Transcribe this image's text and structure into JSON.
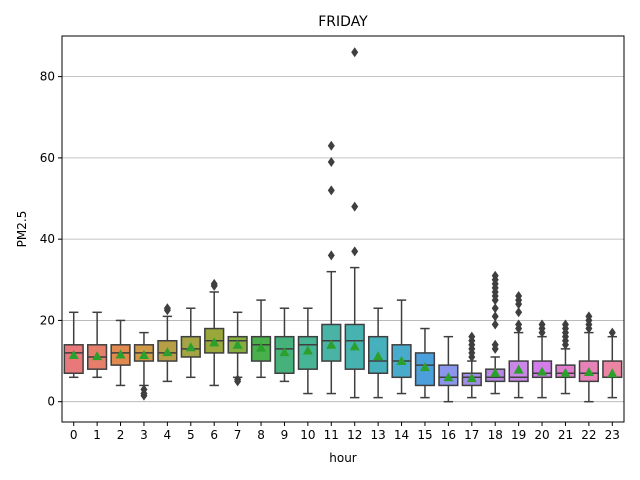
{
  "chart_data": {
    "type": "box",
    "title": "FRIDAY",
    "xlabel": "hour",
    "ylabel": "PM2.5",
    "ylim": [
      -5,
      90
    ],
    "yticks": [
      0,
      20,
      40,
      60,
      80
    ],
    "grid": "y",
    "mean_marker": "green-triangle",
    "categories": [
      "0",
      "1",
      "2",
      "3",
      "4",
      "5",
      "6",
      "7",
      "8",
      "9",
      "10",
      "11",
      "12",
      "13",
      "14",
      "15",
      "16",
      "17",
      "18",
      "19",
      "20",
      "21",
      "22",
      "23"
    ],
    "colors": [
      "#e8787a",
      "#e57f6c",
      "#e08a50",
      "#cf9a47",
      "#b79e46",
      "#a4a444",
      "#9aa83b",
      "#85ad3f",
      "#49b04c",
      "#47b17b",
      "#47b495",
      "#49b3a6",
      "#47b3b1",
      "#46b0bd",
      "#49abcc",
      "#4ba0dc",
      "#8b95ec",
      "#a48de4",
      "#b886e2",
      "#c988e6",
      "#d27de9",
      "#e27bd0",
      "#e782b9",
      "#ec84a3"
    ],
    "boxes": [
      {
        "whisker_low": 6,
        "q1": 7,
        "median": 12,
        "q3": 14,
        "whisker_high": 22,
        "mean": 11.5,
        "outliers": []
      },
      {
        "whisker_low": 6,
        "q1": 8,
        "median": 11,
        "q3": 14,
        "whisker_high": 22,
        "mean": 11.2,
        "outliers": []
      },
      {
        "whisker_low": 4,
        "q1": 9,
        "median": 12,
        "q3": 14,
        "whisker_high": 20,
        "mean": 11.6,
        "outliers": []
      },
      {
        "whisker_low": 4,
        "q1": 10,
        "median": 12,
        "q3": 14,
        "whisker_high": 17,
        "mean": 11.5,
        "outliers": [
          3,
          2,
          1.5
        ]
      },
      {
        "whisker_low": 5,
        "q1": 10,
        "median": 12,
        "q3": 15,
        "whisker_high": 21,
        "mean": 12.2,
        "outliers": [
          23,
          22.5
        ]
      },
      {
        "whisker_low": 6,
        "q1": 11,
        "median": 13,
        "q3": 16,
        "whisker_high": 23,
        "mean": 13.4,
        "outliers": []
      },
      {
        "whisker_low": 4,
        "q1": 12,
        "median": 15,
        "q3": 18,
        "whisker_high": 27,
        "mean": 14.6,
        "outliers": [
          29,
          28.5
        ]
      },
      {
        "whisker_low": 6,
        "q1": 12,
        "median": 15,
        "q3": 16,
        "whisker_high": 22,
        "mean": 14.0,
        "outliers": [
          5.5,
          5
        ]
      },
      {
        "whisker_low": 6,
        "q1": 10,
        "median": 14,
        "q3": 16,
        "whisker_high": 25,
        "mean": 13.3,
        "outliers": []
      },
      {
        "whisker_low": 5,
        "q1": 7,
        "median": 13,
        "q3": 16,
        "whisker_high": 23,
        "mean": 12.2,
        "outliers": []
      },
      {
        "whisker_low": 2,
        "q1": 8,
        "median": 14,
        "q3": 16,
        "whisker_high": 23,
        "mean": 12.6,
        "outliers": []
      },
      {
        "whisker_low": 2,
        "q1": 10,
        "median": 15,
        "q3": 19,
        "whisker_high": 32,
        "mean": 14.0,
        "outliers": [
          36,
          52,
          59,
          63
        ]
      },
      {
        "whisker_low": 1,
        "q1": 8,
        "median": 15,
        "q3": 19,
        "whisker_high": 33,
        "mean": 13.6,
        "outliers": [
          37,
          48,
          86
        ]
      },
      {
        "whisker_low": 1,
        "q1": 7,
        "median": 10,
        "q3": 16,
        "whisker_high": 23,
        "mean": 11.2,
        "outliers": []
      },
      {
        "whisker_low": 2,
        "q1": 6,
        "median": 10,
        "q3": 14,
        "whisker_high": 25,
        "mean": 10.0,
        "outliers": []
      },
      {
        "whisker_low": 1,
        "q1": 4,
        "median": 9,
        "q3": 12,
        "whisker_high": 18,
        "mean": 8.5,
        "outliers": []
      },
      {
        "whisker_low": 0,
        "q1": 4,
        "median": 6,
        "q3": 9,
        "whisker_high": 16,
        "mean": 6.0,
        "outliers": []
      },
      {
        "whisker_low": 1,
        "q1": 4,
        "median": 6,
        "q3": 7,
        "whisker_high": 10,
        "mean": 5.8,
        "outliers": [
          11,
          12,
          13,
          14,
          15,
          16
        ]
      },
      {
        "whisker_low": 2,
        "q1": 5,
        "median": 6,
        "q3": 8,
        "whisker_high": 11,
        "mean": 7.1,
        "outliers": [
          13,
          14,
          19,
          21,
          23,
          25,
          26,
          27,
          28,
          29,
          30,
          31
        ]
      },
      {
        "whisker_low": 1,
        "q1": 5,
        "median": 6,
        "q3": 10,
        "whisker_high": 17,
        "mean": 7.9,
        "outliers": [
          18,
          19,
          22,
          24,
          25,
          26
        ]
      },
      {
        "whisker_low": 1,
        "q1": 6,
        "median": 7,
        "q3": 10,
        "whisker_high": 16,
        "mean": 7.4,
        "outliers": [
          17,
          18,
          19
        ]
      },
      {
        "whisker_low": 2,
        "q1": 6,
        "median": 7,
        "q3": 9,
        "whisker_high": 13,
        "mean": 7.1,
        "outliers": [
          14,
          15,
          16,
          17,
          18,
          19
        ]
      },
      {
        "whisker_low": 0,
        "q1": 5,
        "median": 7,
        "q3": 10,
        "whisker_high": 17,
        "mean": 7.3,
        "outliers": [
          18,
          19,
          20,
          21
        ]
      },
      {
        "whisker_low": 1,
        "q1": 6,
        "median": 6,
        "q3": 10,
        "whisker_high": 16,
        "mean": 7.0,
        "outliers": [
          17
        ]
      }
    ]
  }
}
